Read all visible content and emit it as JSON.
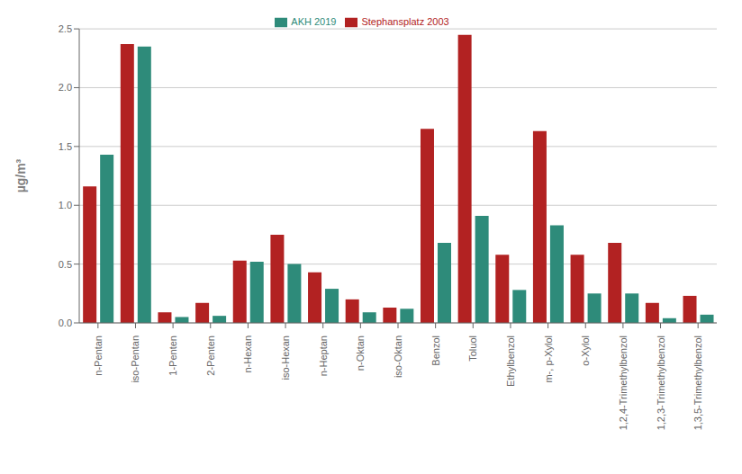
{
  "chart_data": {
    "type": "bar",
    "ylabel": "µg/m³",
    "categories": [
      "n-Pentan",
      "iso-Pentan",
      "1-Penten",
      "2-Penten",
      "n-Hexan",
      "iso-Hexan",
      "n-Heptan",
      "n-Oktan",
      "iso-Oktan",
      "Benzol",
      "Toluol",
      "Ethylbenzol",
      "m-, p-Xylol",
      "o-Xylol",
      "1,2,4-Trimethylbenzol",
      "1,2,3-Trimethylbenzol",
      "1,3,5-Trimethylbenzol"
    ],
    "series": [
      {
        "name": "Stephansplatz 2003",
        "color": "#B22222",
        "values": [
          1.16,
          2.37,
          0.09,
          0.17,
          0.53,
          0.75,
          0.43,
          0.2,
          0.13,
          1.65,
          2.45,
          0.58,
          1.63,
          0.58,
          0.68,
          0.17,
          0.23
        ]
      },
      {
        "name": "AKH 2019",
        "color": "#2E8B7A",
        "values": [
          1.43,
          2.35,
          0.05,
          0.06,
          0.52,
          0.5,
          0.29,
          0.09,
          0.12,
          0.68,
          0.91,
          0.28,
          0.83,
          0.25,
          0.25,
          0.04,
          0.07
        ]
      }
    ],
    "ylim": [
      0,
      2.5
    ],
    "yticks": [
      {
        "value": 0,
        "label": "0.0"
      },
      0.5,
      {
        "value": 1,
        "label": "1.0"
      },
      1.5,
      {
        "value": 2,
        "label": "2.0"
      },
      2.5
    ],
    "grid": true,
    "legend": "upper center"
  }
}
